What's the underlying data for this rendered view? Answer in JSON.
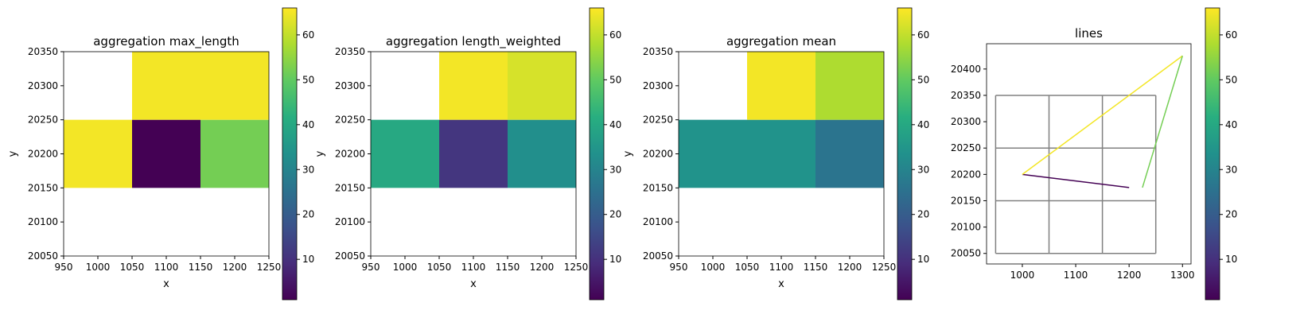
{
  "chart_data": [
    {
      "type": "heatmap",
      "title": "aggregation max_length",
      "xlabel": "x",
      "ylabel": "y",
      "colormap": "viridis",
      "x_edges": [
        950,
        1050,
        1150,
        1250
      ],
      "y_edges": [
        20150,
        20250,
        20350
      ],
      "values": [
        [
          65,
          1,
          52
        ],
        [
          null,
          65,
          65
        ]
      ],
      "xlim": [
        950,
        1250
      ],
      "ylim": [
        20050,
        20350
      ],
      "xticks": [
        950,
        1000,
        1050,
        1100,
        1150,
        1200,
        1250
      ],
      "yticks": [
        20050,
        20100,
        20150,
        20200,
        20250,
        20300,
        20350
      ],
      "clim": [
        1,
        66
      ],
      "cticks": [
        10,
        20,
        30,
        40,
        50,
        60
      ]
    },
    {
      "type": "heatmap",
      "title": "aggregation length_weighted",
      "xlabel": "x",
      "ylabel": "y",
      "colormap": "viridis",
      "x_edges": [
        950,
        1050,
        1150,
        1250
      ],
      "y_edges": [
        20150,
        20250,
        20350
      ],
      "values": [
        [
          40,
          11,
          33
        ],
        [
          null,
          65,
          62
        ]
      ],
      "xlim": [
        950,
        1250
      ],
      "ylim": [
        20050,
        20350
      ],
      "xticks": [
        950,
        1000,
        1050,
        1100,
        1150,
        1200,
        1250
      ],
      "yticks": [
        20050,
        20100,
        20150,
        20200,
        20250,
        20300,
        20350
      ],
      "clim": [
        1,
        66
      ],
      "cticks": [
        10,
        20,
        30,
        40,
        50,
        60
      ]
    },
    {
      "type": "heatmap",
      "title": "aggregation mean",
      "xlabel": "x",
      "ylabel": "y",
      "colormap": "viridis",
      "x_edges": [
        950,
        1050,
        1150,
        1250
      ],
      "y_edges": [
        20150,
        20250,
        20350
      ],
      "values": [
        [
          34,
          34,
          26
        ],
        [
          null,
          65,
          58
        ]
      ],
      "xlim": [
        950,
        1250
      ],
      "ylim": [
        20050,
        20350
      ],
      "xticks": [
        950,
        1000,
        1050,
        1100,
        1150,
        1200,
        1250
      ],
      "yticks": [
        20050,
        20100,
        20150,
        20200,
        20250,
        20300,
        20350
      ],
      "clim": [
        1,
        66
      ],
      "cticks": [
        10,
        20,
        30,
        40,
        50,
        60
      ]
    },
    {
      "type": "line",
      "title": "lines",
      "colormap": "viridis",
      "cells": {
        "color": "#808080",
        "x_edges": [
          950,
          1050,
          1150,
          1250
        ],
        "y_edges": [
          20050,
          20150,
          20250,
          20350
        ]
      },
      "series": [
        {
          "x": [
            1000,
            1200
          ],
          "y": [
            20200,
            20175
          ],
          "value": 1
        },
        {
          "x": [
            1000,
            1300
          ],
          "y": [
            20200,
            20425
          ],
          "value": 65
        },
        {
          "x": [
            1225,
            1300
          ],
          "y": [
            20175,
            20425
          ],
          "value": 52
        }
      ],
      "xlim": [
        933,
        1316
      ],
      "ylim": [
        20030,
        20448
      ],
      "xticks": [
        1000,
        1100,
        1200,
        1300
      ],
      "yticks": [
        20050,
        20100,
        20150,
        20200,
        20250,
        20300,
        20350,
        20400
      ],
      "clim": [
        1,
        66
      ],
      "cticks": [
        10,
        20,
        30,
        40,
        50,
        60
      ]
    }
  ]
}
